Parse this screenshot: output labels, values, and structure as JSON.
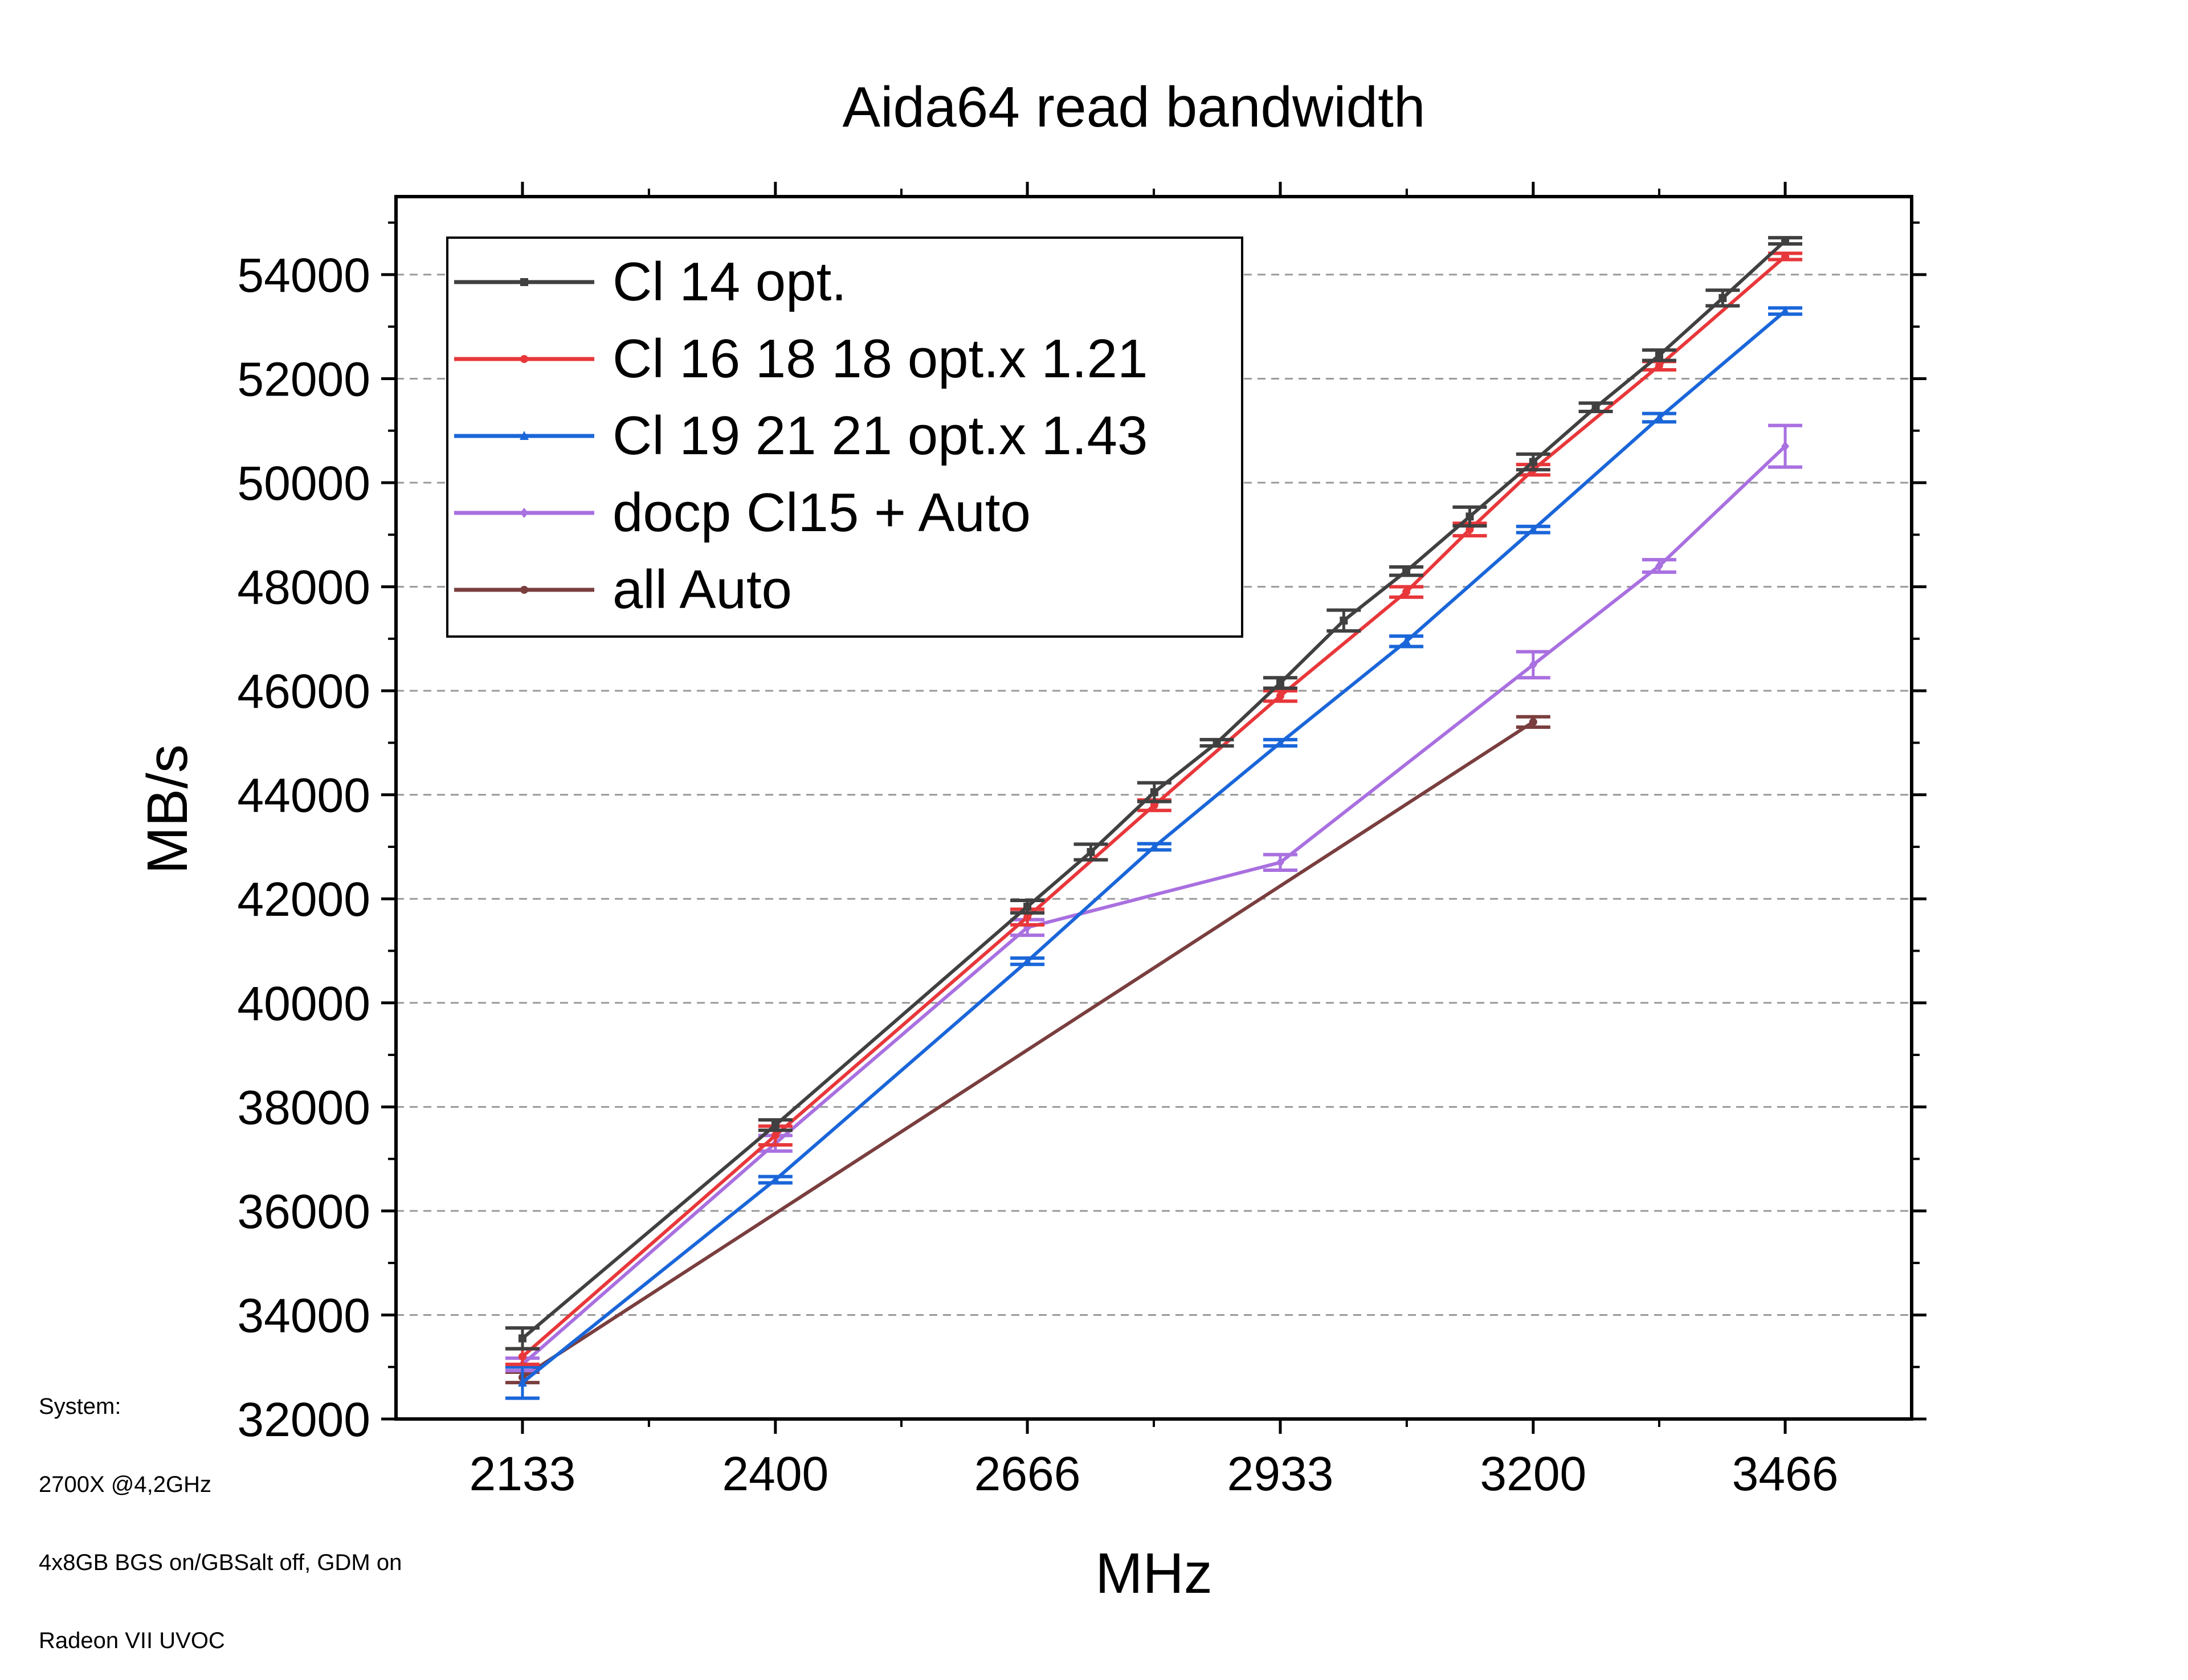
{
  "chart_data": {
    "type": "line",
    "title": "Aida64 read bandwidth",
    "xlabel": "MHz",
    "ylabel": "MB/s",
    "xlim": [
      1999.5,
      3599.5
    ],
    "ylim": [
      32000,
      55500
    ],
    "x_ticks": [
      2133,
      2400,
      2666,
      2933,
      3200,
      3466
    ],
    "x_tick_labels": [
      "2133",
      "2400",
      "2666",
      "2933",
      "3200",
      "3466"
    ],
    "y_ticks": [
      32000,
      34000,
      36000,
      38000,
      40000,
      42000,
      44000,
      46000,
      48000,
      50000,
      52000,
      54000
    ],
    "y_tick_labels": [
      "32000",
      "34000",
      "36000",
      "38000",
      "40000",
      "42000",
      "44000",
      "46000",
      "48000",
      "50000",
      "52000",
      "54000"
    ],
    "grid": "horizontal dashed",
    "legend_position": "top-left",
    "series": [
      {
        "name": "Cl 14 opt.",
        "color": "#404040",
        "marker": "square",
        "x": [
          2133,
          2400,
          2666,
          2733,
          2800,
          2866,
          2933,
          3000,
          3066,
          3133,
          3200,
          3266,
          3333,
          3400,
          3466
        ],
        "y": [
          33550,
          37650,
          41850,
          42900,
          44050,
          45000,
          46150,
          47350,
          48300,
          49350,
          50400,
          51450,
          52450,
          53550,
          54650
        ],
        "err": [
          200,
          100,
          120,
          150,
          180,
          60,
          100,
          200,
          80,
          180,
          150,
          80,
          100,
          150,
          60
        ]
      },
      {
        "name": "Cl 16 18 18 opt.x 1.21",
        "color": "#e8373a",
        "marker": "circle",
        "x": [
          2133,
          2400,
          2666,
          2800,
          2933,
          3066,
          3133,
          3200,
          3333,
          3466
        ],
        "y": [
          33200,
          37450,
          41650,
          43800,
          45900,
          47900,
          49100,
          50250,
          52250,
          54350
        ],
        "err": [
          150,
          180,
          150,
          100,
          100,
          100,
          120,
          100,
          80,
          60
        ]
      },
      {
        "name": "Cl 19 21 21 opt.x 1.43",
        "color": "#1a66d9",
        "marker": "triangle",
        "x": [
          2133,
          2400,
          2666,
          2800,
          2933,
          3066,
          3200,
          3333,
          3466
        ],
        "y": [
          32700,
          36600,
          40800,
          43000,
          45000,
          46950,
          49100,
          51250,
          53300
        ],
        "err": [
          300,
          60,
          60,
          60,
          60,
          100,
          60,
          80,
          60
        ]
      },
      {
        "name": "docp Cl15 + Auto",
        "color": "#a970e0",
        "marker": "diamond",
        "x": [
          2133,
          2400,
          2666,
          2933,
          3200,
          3333,
          3466
        ],
        "y": [
          33050,
          37300,
          41450,
          42700,
          46500,
          48400,
          50700
        ],
        "err": [
          120,
          150,
          150,
          150,
          250,
          120,
          400
        ]
      },
      {
        "name": "all Auto",
        "color": "#7a3e3e",
        "marker": "hexagon",
        "x": [
          2133,
          3200
        ],
        "y": [
          32800,
          45400
        ],
        "err": [
          100,
          100
        ]
      }
    ]
  },
  "notes": {
    "line1": "System:",
    "line2": "2700X @4,2GHz",
    "line3": "4x8GB BGS on/GBSalt off, GDM on",
    "line4": "Radeon VII UVOC"
  }
}
